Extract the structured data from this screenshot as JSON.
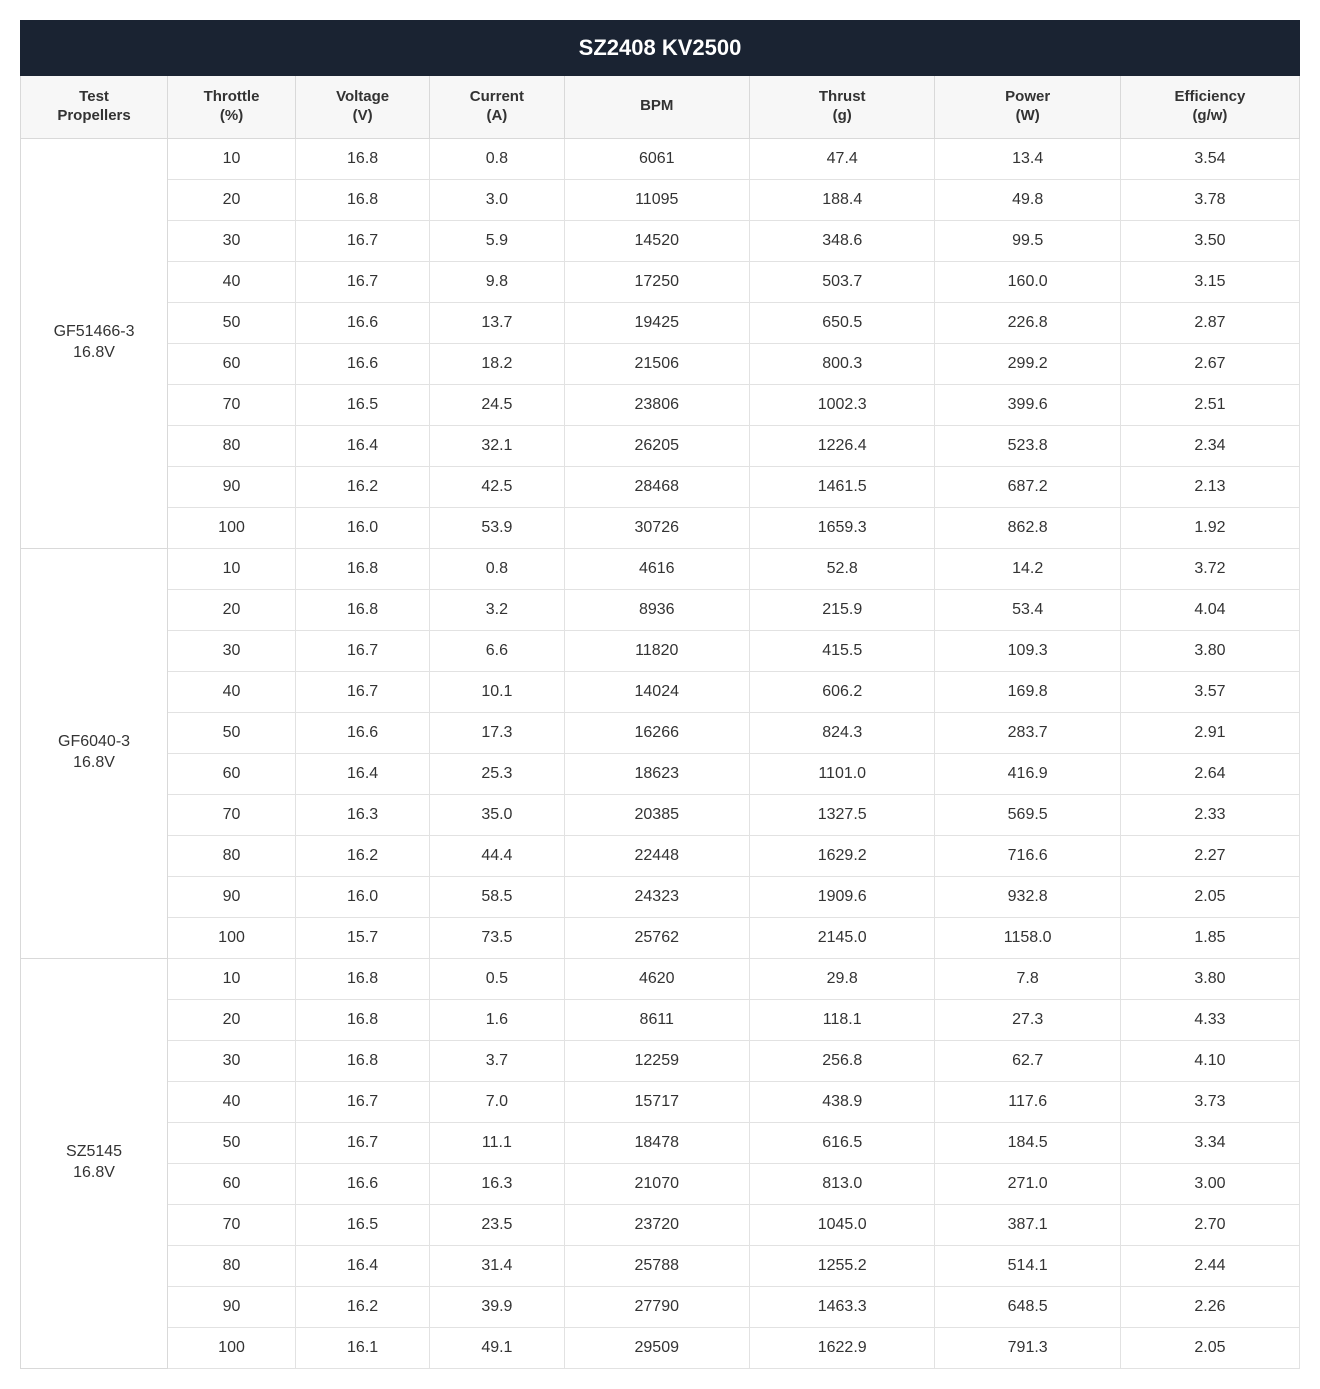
{
  "title": "SZ2408 KV2500",
  "columns": [
    {
      "label": "Test",
      "sub": "Propellers"
    },
    {
      "label": "Throttle",
      "sub": "(%)"
    },
    {
      "label": "Voltage",
      "sub": "(V)"
    },
    {
      "label": "Current",
      "sub": "(A)"
    },
    {
      "label": "BPM",
      "sub": ""
    },
    {
      "label": "Thrust",
      "sub": "(g)"
    },
    {
      "label": "Power",
      "sub": "(W)"
    },
    {
      "label": "Efficiency",
      "sub": "(g/w)"
    }
  ],
  "groups": [
    {
      "propeller": "GF51466-3",
      "voltage_label": "16.8V",
      "rows": [
        [
          "10",
          "16.8",
          "0.8",
          "6061",
          "47.4",
          "13.4",
          "3.54"
        ],
        [
          "20",
          "16.8",
          "3.0",
          "11095",
          "188.4",
          "49.8",
          "3.78"
        ],
        [
          "30",
          "16.7",
          "5.9",
          "14520",
          "348.6",
          "99.5",
          "3.50"
        ],
        [
          "40",
          "16.7",
          "9.8",
          "17250",
          "503.7",
          "160.0",
          "3.15"
        ],
        [
          "50",
          "16.6",
          "13.7",
          "19425",
          "650.5",
          "226.8",
          "2.87"
        ],
        [
          "60",
          "16.6",
          "18.2",
          "21506",
          "800.3",
          "299.2",
          "2.67"
        ],
        [
          "70",
          "16.5",
          "24.5",
          "23806",
          "1002.3",
          "399.6",
          "2.51"
        ],
        [
          "80",
          "16.4",
          "32.1",
          "26205",
          "1226.4",
          "523.8",
          "2.34"
        ],
        [
          "90",
          "16.2",
          "42.5",
          "28468",
          "1461.5",
          "687.2",
          "2.13"
        ],
        [
          "100",
          "16.0",
          "53.9",
          "30726",
          "1659.3",
          "862.8",
          "1.92"
        ]
      ]
    },
    {
      "propeller": "GF6040-3",
      "voltage_label": "16.8V",
      "rows": [
        [
          "10",
          "16.8",
          "0.8",
          "4616",
          "52.8",
          "14.2",
          "3.72"
        ],
        [
          "20",
          "16.8",
          "3.2",
          "8936",
          "215.9",
          "53.4",
          "4.04"
        ],
        [
          "30",
          "16.7",
          "6.6",
          "11820",
          "415.5",
          "109.3",
          "3.80"
        ],
        [
          "40",
          "16.7",
          "10.1",
          "14024",
          "606.2",
          "169.8",
          "3.57"
        ],
        [
          "50",
          "16.6",
          "17.3",
          "16266",
          "824.3",
          "283.7",
          "2.91"
        ],
        [
          "60",
          "16.4",
          "25.3",
          "18623",
          "1101.0",
          "416.9",
          "2.64"
        ],
        [
          "70",
          "16.3",
          "35.0",
          "20385",
          "1327.5",
          "569.5",
          "2.33"
        ],
        [
          "80",
          "16.2",
          "44.4",
          "22448",
          "1629.2",
          "716.6",
          "2.27"
        ],
        [
          "90",
          "16.0",
          "58.5",
          "24323",
          "1909.6",
          "932.8",
          "2.05"
        ],
        [
          "100",
          "15.7",
          "73.5",
          "25762",
          "2145.0",
          "1158.0",
          "1.85"
        ]
      ]
    },
    {
      "propeller": "SZ5145",
      "voltage_label": "16.8V",
      "rows": [
        [
          "10",
          "16.8",
          "0.5",
          "4620",
          "29.8",
          "7.8",
          "3.80"
        ],
        [
          "20",
          "16.8",
          "1.6",
          "8611",
          "118.1",
          "27.3",
          "4.33"
        ],
        [
          "30",
          "16.8",
          "3.7",
          "12259",
          "256.8",
          "62.7",
          "4.10"
        ],
        [
          "40",
          "16.7",
          "7.0",
          "15717",
          "438.9",
          "117.6",
          "3.73"
        ],
        [
          "50",
          "16.7",
          "11.1",
          "18478",
          "616.5",
          "184.5",
          "3.34"
        ],
        [
          "60",
          "16.6",
          "16.3",
          "21070",
          "813.0",
          "271.0",
          "3.00"
        ],
        [
          "70",
          "16.5",
          "23.5",
          "23720",
          "1045.0",
          "387.1",
          "2.70"
        ],
        [
          "80",
          "16.4",
          "31.4",
          "25788",
          "1255.2",
          "514.1",
          "2.44"
        ],
        [
          "90",
          "16.2",
          "39.9",
          "27790",
          "1463.3",
          "648.5",
          "2.26"
        ],
        [
          "100",
          "16.1",
          "49.1",
          "29509",
          "1622.9",
          "791.3",
          "2.05"
        ]
      ]
    }
  ],
  "style": {
    "title_bg": "#1a2332",
    "title_fg": "#ffffff",
    "header_bg": "#f7f7f7",
    "border_color": "#d9d9d9",
    "cell_border": "#e2e2e2",
    "text_color": "#333333",
    "title_fontsize": 22,
    "header_fontsize": 15,
    "cell_fontsize": 16
  }
}
